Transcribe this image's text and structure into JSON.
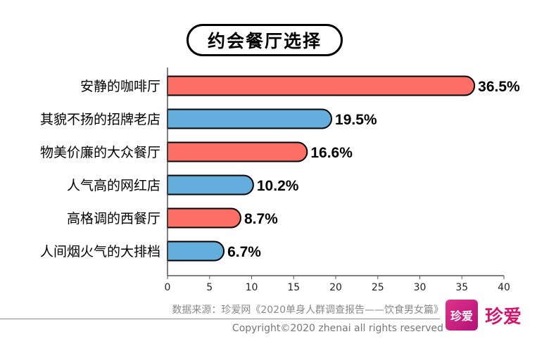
{
  "title": "约会餐厅选择",
  "source": "数据来源：珍爱网《2020单身人群调查报告——饮食男女篇》",
  "copyright": "Copyright©2020  zhenai  all rights reserved",
  "logo": {
    "box_text": "珍爱",
    "text": "珍爱"
  },
  "colors": {
    "red": "#fd6f66",
    "blue": "#64aede",
    "stroke": "#000000",
    "axis": "#555555"
  },
  "chart_data": {
    "type": "bar",
    "orientation": "horizontal",
    "categories": [
      "安静的咖啡厅",
      "其貌不扬的招牌老店",
      "物美价廉的大众餐厅",
      "人气高的网红店",
      "高格调的西餐厅",
      "人间烟火气的大排档"
    ],
    "values": [
      36.5,
      19.5,
      16.6,
      10.2,
      8.7,
      6.7
    ],
    "value_labels": [
      "36.5%",
      "19.5%",
      "16.6%",
      "10.2%",
      "8.7%",
      "6.7%"
    ],
    "bar_colors": [
      "#fd6f66",
      "#64aede",
      "#fd6f66",
      "#64aede",
      "#fd6f66",
      "#64aede"
    ],
    "xlim": [
      0,
      40
    ],
    "xticks": [
      0,
      5,
      10,
      15,
      20,
      25,
      30,
      35,
      40
    ],
    "grid": false,
    "legend": "none"
  }
}
